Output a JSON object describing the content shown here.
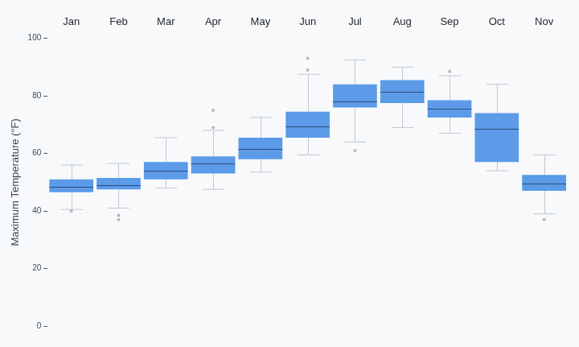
{
  "chart_data": {
    "type": "boxplot",
    "categories": [
      "Jan",
      "Feb",
      "Mar",
      "Apr",
      "May",
      "Jun",
      "Jul",
      "Aug",
      "Sep",
      "Oct",
      "Nov"
    ],
    "min": [
      40.5,
      41,
      48,
      47.5,
      53.5,
      59.5,
      64,
      69,
      67,
      54,
      39
    ],
    "q1": [
      46.5,
      47.5,
      51,
      53,
      58,
      65.5,
      76,
      77.5,
      72.5,
      57,
      47
    ],
    "median": [
      48.5,
      49,
      54,
      56.5,
      61.5,
      69.5,
      78,
      81.5,
      75.5,
      68.5,
      49.5
    ],
    "q3": [
      51,
      51.5,
      57,
      59,
      65.5,
      74.5,
      84,
      85.5,
      78.5,
      74,
      52.5
    ],
    "max": [
      56,
      56.5,
      65.5,
      68,
      72.5,
      87.5,
      92.5,
      90,
      87,
      84,
      59.5
    ],
    "outliers": [
      [
        40
      ],
      [
        38.5,
        37
      ],
      [],
      [
        75,
        69
      ],
      [],
      [
        93,
        89
      ],
      [
        61
      ],
      [],
      [
        88.5
      ],
      [],
      [
        37
      ]
    ],
    "color": "#5b9be8",
    "ylabel": "Maximum Temperature (°F)",
    "ylim": [
      0,
      100
    ],
    "yticks": [
      0,
      20,
      40,
      60,
      80,
      100
    ],
    "grid": false
  }
}
